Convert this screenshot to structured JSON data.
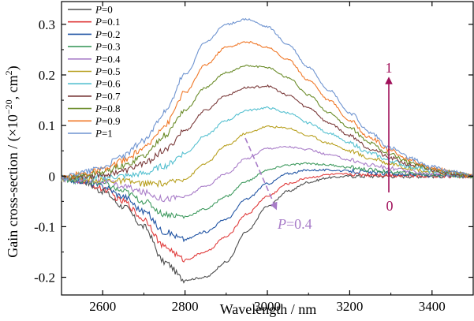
{
  "chart_data": {
    "type": "line",
    "xlabel": "Wavelength / nm",
    "ylabel_text": "Gain cross-section / (×10",
    "ylabel_exp": "−20",
    "ylabel_tail": ", cm",
    "ylabel_sq": "2",
    "ylabel_close": ")",
    "xlim": [
      2500,
      3500
    ],
    "ylim": [
      -0.235,
      0.345
    ],
    "xticks": [
      2600,
      2800,
      3000,
      3200,
      3400
    ],
    "xtick_labels": [
      "2600",
      "2800",
      "3000",
      "3200",
      "3400"
    ],
    "yticks": [
      -0.2,
      -0.1,
      0,
      0.1,
      0.2,
      0.3
    ],
    "ytick_labels": [
      "-0.2",
      "-0.1",
      "0",
      "0.1",
      "0.2",
      "0.3"
    ],
    "grid": false,
    "legend_position": "top-left",
    "legend_var": "P",
    "series": [
      {
        "name": "=0",
        "color": "#4d4d4d",
        "values": [
          -0.005,
          -0.01,
          -0.03,
          -0.06,
          -0.1,
          -0.17,
          -0.205,
          -0.2,
          -0.17,
          -0.11,
          -0.06,
          -0.03,
          -0.012,
          -0.003,
          0.0,
          0.0,
          0.0,
          0.0,
          0.0,
          0.0,
          0.0
        ]
      },
      {
        "name": "=0.1",
        "color": "#e03c3c",
        "values": [
          -0.005,
          -0.01,
          -0.025,
          -0.05,
          -0.085,
          -0.14,
          -0.165,
          -0.15,
          -0.12,
          -0.075,
          -0.04,
          -0.015,
          -0.003,
          0.003,
          0.004,
          0.003,
          0.002,
          0.001,
          0.001,
          0.0,
          0.0
        ]
      },
      {
        "name": "=0.2",
        "color": "#2255a4",
        "values": [
          -0.005,
          -0.01,
          -0.02,
          -0.04,
          -0.07,
          -0.11,
          -0.125,
          -0.11,
          -0.085,
          -0.045,
          -0.015,
          0.005,
          0.012,
          0.012,
          0.01,
          0.007,
          0.005,
          0.003,
          0.002,
          0.001,
          0.0
        ]
      },
      {
        "name": "=0.3",
        "color": "#3f9a5f",
        "values": [
          -0.005,
          -0.01,
          -0.015,
          -0.03,
          -0.05,
          -0.075,
          -0.08,
          -0.065,
          -0.04,
          -0.01,
          0.012,
          0.022,
          0.025,
          0.022,
          0.017,
          0.012,
          0.008,
          0.005,
          0.003,
          0.001,
          0.0
        ]
      },
      {
        "name": "=0.4",
        "color": "#a87cc8",
        "values": [
          -0.005,
          -0.008,
          -0.01,
          -0.02,
          -0.032,
          -0.045,
          -0.04,
          -0.02,
          0.005,
          0.035,
          0.055,
          0.058,
          0.052,
          0.042,
          0.032,
          0.022,
          0.015,
          0.009,
          0.005,
          0.002,
          0.0
        ]
      },
      {
        "name": "=0.5",
        "color": "#b8a020",
        "values": [
          -0.005,
          -0.005,
          -0.008,
          -0.01,
          -0.015,
          -0.015,
          -0.005,
          0.025,
          0.06,
          0.085,
          0.098,
          0.095,
          0.08,
          0.065,
          0.05,
          0.035,
          0.025,
          0.015,
          0.008,
          0.004,
          0.0
        ]
      },
      {
        "name": "=0.6",
        "color": "#55c0d0",
        "values": [
          -0.005,
          -0.003,
          -0.003,
          0.0,
          0.005,
          0.02,
          0.045,
          0.08,
          0.11,
          0.13,
          0.135,
          0.125,
          0.105,
          0.085,
          0.065,
          0.045,
          0.03,
          0.018,
          0.01,
          0.005,
          0.0
        ]
      },
      {
        "name": "=0.7",
        "color": "#7a3a3a",
        "values": [
          -0.005,
          0.0,
          0.003,
          0.01,
          0.025,
          0.05,
          0.09,
          0.13,
          0.16,
          0.175,
          0.178,
          0.16,
          0.135,
          0.105,
          0.08,
          0.055,
          0.035,
          0.022,
          0.012,
          0.006,
          0.0
        ]
      },
      {
        "name": "=0.8",
        "color": "#6b8c2a",
        "values": [
          -0.005,
          0.002,
          0.008,
          0.02,
          0.04,
          0.08,
          0.13,
          0.175,
          0.205,
          0.218,
          0.215,
          0.195,
          0.16,
          0.125,
          0.095,
          0.065,
          0.042,
          0.026,
          0.014,
          0.007,
          0.0
        ]
      },
      {
        "name": "=0.9",
        "color": "#f07828",
        "values": [
          -0.005,
          0.005,
          0.012,
          0.03,
          0.055,
          0.1,
          0.165,
          0.22,
          0.255,
          0.265,
          0.255,
          0.23,
          0.19,
          0.15,
          0.11,
          0.075,
          0.05,
          0.03,
          0.016,
          0.008,
          0.0
        ]
      },
      {
        "name": "=1",
        "color": "#6f94d0",
        "values": [
          -0.005,
          0.008,
          0.018,
          0.04,
          0.07,
          0.125,
          0.2,
          0.265,
          0.3,
          0.31,
          0.295,
          0.26,
          0.215,
          0.17,
          0.125,
          0.085,
          0.055,
          0.034,
          0.018,
          0.009,
          0.0
        ]
      }
    ],
    "x": [
      2500,
      2550,
      2600,
      2650,
      2700,
      2750,
      2800,
      2850,
      2900,
      2950,
      3000,
      3050,
      3100,
      3150,
      3200,
      3250,
      3300,
      3350,
      3400,
      3450,
      3500
    ],
    "annotations": {
      "arrow_top_label": "1",
      "arrow_bottom_label": "0",
      "arrow_color": "#a0105a",
      "p_label_var": "P",
      "p_label_value": "=0.4",
      "p_label_color": "#a87cc8"
    }
  }
}
